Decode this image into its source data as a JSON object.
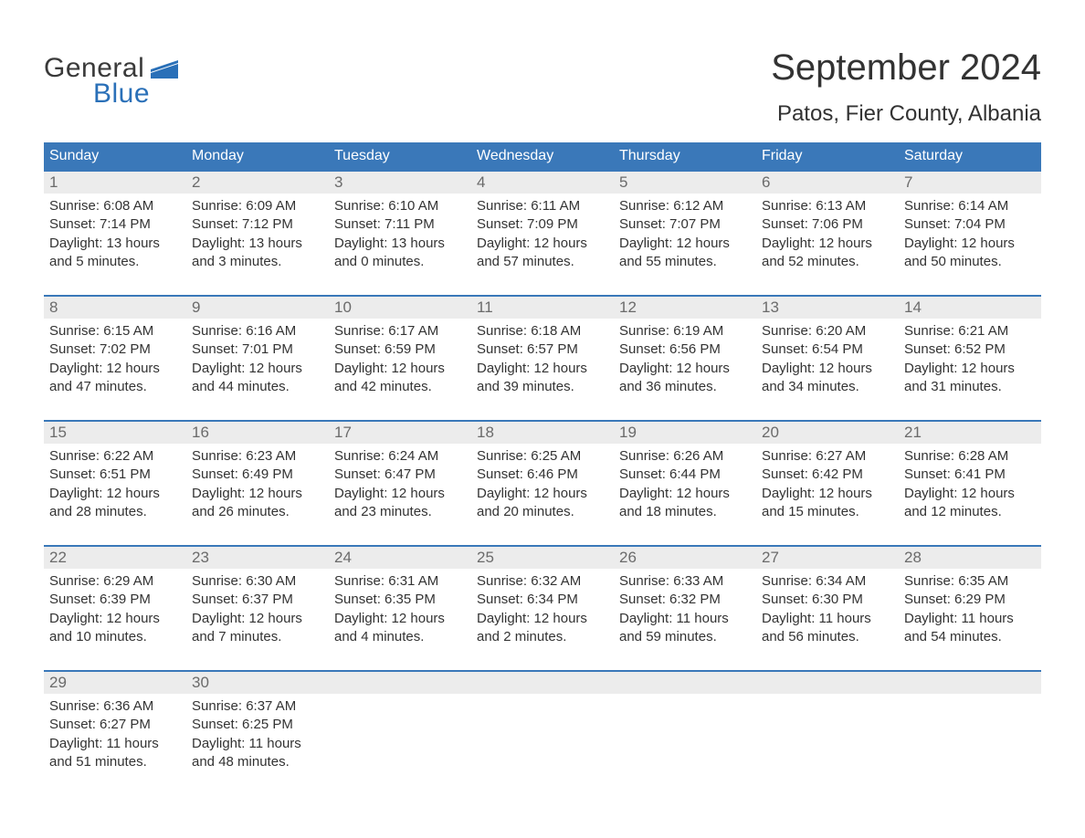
{
  "logo": {
    "text_top": "General",
    "text_bottom": "Blue",
    "top_color": "#3a3a3a",
    "bottom_color": "#2a70b8",
    "flag_color": "#2a70b8"
  },
  "title": "September 2024",
  "location": "Patos, Fier County, Albania",
  "colors": {
    "header_bg": "#3a78b9",
    "header_text": "#ffffff",
    "daynum_bg": "#ececec",
    "daynum_text": "#6b6b6b",
    "body_text": "#333333",
    "week_border": "#3a78b9",
    "page_bg": "#ffffff"
  },
  "fonts": {
    "family": "Arial",
    "title_size_pt": 30,
    "location_size_pt": 18,
    "dayheader_size_pt": 12,
    "daynum_size_pt": 13,
    "body_size_pt": 11
  },
  "day_headers": [
    "Sunday",
    "Monday",
    "Tuesday",
    "Wednesday",
    "Thursday",
    "Friday",
    "Saturday"
  ],
  "weeks": [
    [
      {
        "n": "1",
        "sunrise": "6:08 AM",
        "sunset": "7:14 PM",
        "daylight_h": "13",
        "daylight_m": "5"
      },
      {
        "n": "2",
        "sunrise": "6:09 AM",
        "sunset": "7:12 PM",
        "daylight_h": "13",
        "daylight_m": "3"
      },
      {
        "n": "3",
        "sunrise": "6:10 AM",
        "sunset": "7:11 PM",
        "daylight_h": "13",
        "daylight_m": "0"
      },
      {
        "n": "4",
        "sunrise": "6:11 AM",
        "sunset": "7:09 PM",
        "daylight_h": "12",
        "daylight_m": "57"
      },
      {
        "n": "5",
        "sunrise": "6:12 AM",
        "sunset": "7:07 PM",
        "daylight_h": "12",
        "daylight_m": "55"
      },
      {
        "n": "6",
        "sunrise": "6:13 AM",
        "sunset": "7:06 PM",
        "daylight_h": "12",
        "daylight_m": "52"
      },
      {
        "n": "7",
        "sunrise": "6:14 AM",
        "sunset": "7:04 PM",
        "daylight_h": "12",
        "daylight_m": "50"
      }
    ],
    [
      {
        "n": "8",
        "sunrise": "6:15 AM",
        "sunset": "7:02 PM",
        "daylight_h": "12",
        "daylight_m": "47"
      },
      {
        "n": "9",
        "sunrise": "6:16 AM",
        "sunset": "7:01 PM",
        "daylight_h": "12",
        "daylight_m": "44"
      },
      {
        "n": "10",
        "sunrise": "6:17 AM",
        "sunset": "6:59 PM",
        "daylight_h": "12",
        "daylight_m": "42"
      },
      {
        "n": "11",
        "sunrise": "6:18 AM",
        "sunset": "6:57 PM",
        "daylight_h": "12",
        "daylight_m": "39"
      },
      {
        "n": "12",
        "sunrise": "6:19 AM",
        "sunset": "6:56 PM",
        "daylight_h": "12",
        "daylight_m": "36"
      },
      {
        "n": "13",
        "sunrise": "6:20 AM",
        "sunset": "6:54 PM",
        "daylight_h": "12",
        "daylight_m": "34"
      },
      {
        "n": "14",
        "sunrise": "6:21 AM",
        "sunset": "6:52 PM",
        "daylight_h": "12",
        "daylight_m": "31"
      }
    ],
    [
      {
        "n": "15",
        "sunrise": "6:22 AM",
        "sunset": "6:51 PM",
        "daylight_h": "12",
        "daylight_m": "28"
      },
      {
        "n": "16",
        "sunrise": "6:23 AM",
        "sunset": "6:49 PM",
        "daylight_h": "12",
        "daylight_m": "26"
      },
      {
        "n": "17",
        "sunrise": "6:24 AM",
        "sunset": "6:47 PM",
        "daylight_h": "12",
        "daylight_m": "23"
      },
      {
        "n": "18",
        "sunrise": "6:25 AM",
        "sunset": "6:46 PM",
        "daylight_h": "12",
        "daylight_m": "20"
      },
      {
        "n": "19",
        "sunrise": "6:26 AM",
        "sunset": "6:44 PM",
        "daylight_h": "12",
        "daylight_m": "18"
      },
      {
        "n": "20",
        "sunrise": "6:27 AM",
        "sunset": "6:42 PM",
        "daylight_h": "12",
        "daylight_m": "15"
      },
      {
        "n": "21",
        "sunrise": "6:28 AM",
        "sunset": "6:41 PM",
        "daylight_h": "12",
        "daylight_m": "12"
      }
    ],
    [
      {
        "n": "22",
        "sunrise": "6:29 AM",
        "sunset": "6:39 PM",
        "daylight_h": "12",
        "daylight_m": "10"
      },
      {
        "n": "23",
        "sunrise": "6:30 AM",
        "sunset": "6:37 PM",
        "daylight_h": "12",
        "daylight_m": "7"
      },
      {
        "n": "24",
        "sunrise": "6:31 AM",
        "sunset": "6:35 PM",
        "daylight_h": "12",
        "daylight_m": "4"
      },
      {
        "n": "25",
        "sunrise": "6:32 AM",
        "sunset": "6:34 PM",
        "daylight_h": "12",
        "daylight_m": "2"
      },
      {
        "n": "26",
        "sunrise": "6:33 AM",
        "sunset": "6:32 PM",
        "daylight_h": "11",
        "daylight_m": "59"
      },
      {
        "n": "27",
        "sunrise": "6:34 AM",
        "sunset": "6:30 PM",
        "daylight_h": "11",
        "daylight_m": "56"
      },
      {
        "n": "28",
        "sunrise": "6:35 AM",
        "sunset": "6:29 PM",
        "daylight_h": "11",
        "daylight_m": "54"
      }
    ],
    [
      {
        "n": "29",
        "sunrise": "6:36 AM",
        "sunset": "6:27 PM",
        "daylight_h": "11",
        "daylight_m": "51"
      },
      {
        "n": "30",
        "sunrise": "6:37 AM",
        "sunset": "6:25 PM",
        "daylight_h": "11",
        "daylight_m": "48"
      },
      {
        "n": "",
        "sunrise": "",
        "sunset": "",
        "daylight_h": "",
        "daylight_m": ""
      },
      {
        "n": "",
        "sunrise": "",
        "sunset": "",
        "daylight_h": "",
        "daylight_m": ""
      },
      {
        "n": "",
        "sunrise": "",
        "sunset": "",
        "daylight_h": "",
        "daylight_m": ""
      },
      {
        "n": "",
        "sunrise": "",
        "sunset": "",
        "daylight_h": "",
        "daylight_m": ""
      },
      {
        "n": "",
        "sunrise": "",
        "sunset": "",
        "daylight_h": "",
        "daylight_m": ""
      }
    ]
  ],
  "labels": {
    "sunrise": "Sunrise: ",
    "sunset": "Sunset: ",
    "daylight_prefix": "Daylight: ",
    "hours_word": " hours",
    "and_word": "and ",
    "minutes_word": " minutes."
  }
}
